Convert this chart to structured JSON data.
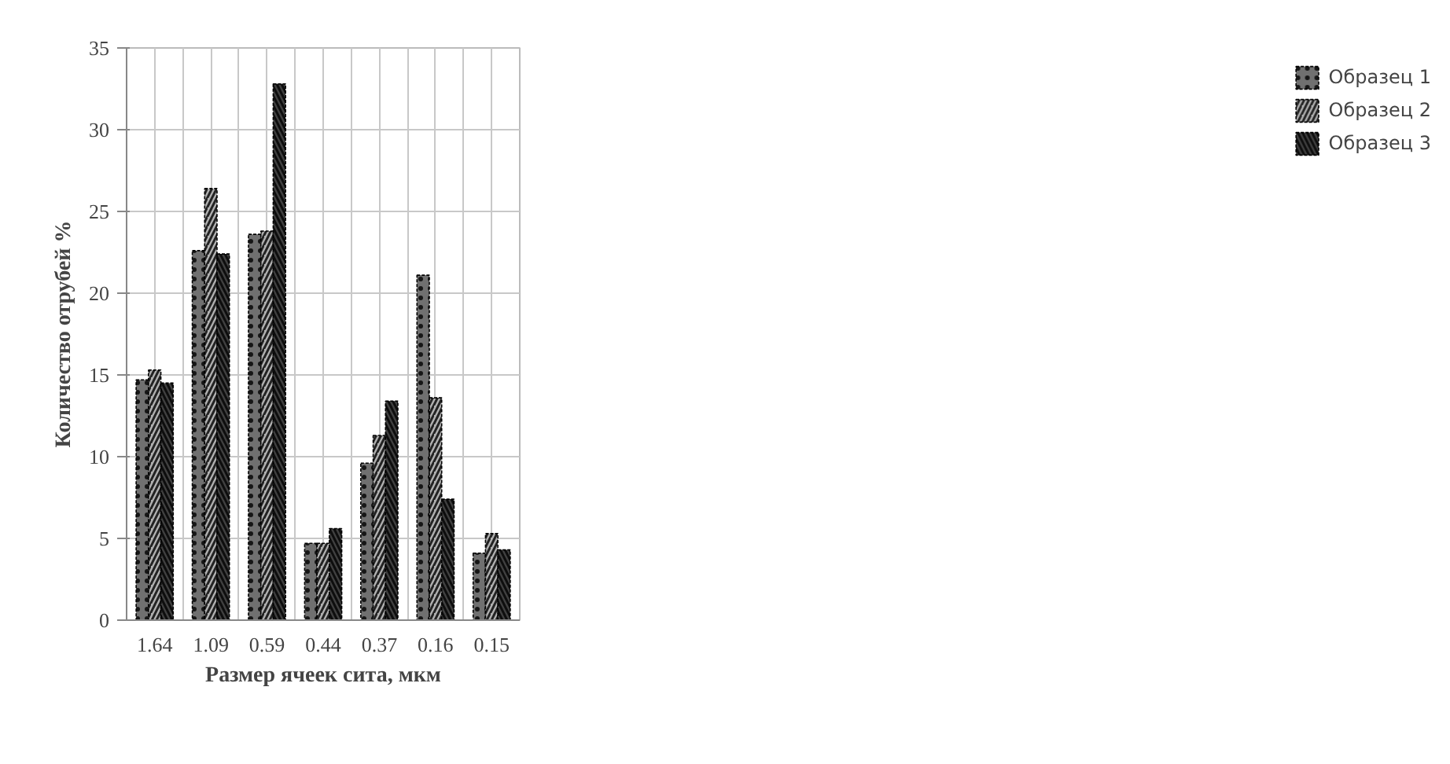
{
  "chart_data": {
    "type": "bar",
    "xlabel": "Размер ячеек сита, мкм",
    "ylabel": "Количество отрубей %",
    "categories": [
      "1.64",
      "1.09",
      "0.59",
      "0.44",
      "0.37",
      "0.16",
      "0.15"
    ],
    "series": [
      {
        "name": "Образец 1",
        "color": "#707070",
        "values": [
          14.7,
          22.6,
          23.6,
          4.7,
          9.6,
          21.1,
          4.1
        ]
      },
      {
        "name": "Образец 2",
        "color": "#b0b0b0",
        "values": [
          15.3,
          26.4,
          23.8,
          4.7,
          11.3,
          13.6,
          5.3
        ]
      },
      {
        "name": "Образец 3",
        "color": "#404040",
        "values": [
          14.5,
          22.4,
          32.8,
          5.6,
          13.4,
          7.4,
          4.3
        ]
      }
    ],
    "ylim": [
      0,
      35
    ],
    "yticks": [
      0,
      5,
      10,
      15,
      20,
      25,
      30,
      35
    ],
    "grid": true,
    "legend": "right"
  }
}
